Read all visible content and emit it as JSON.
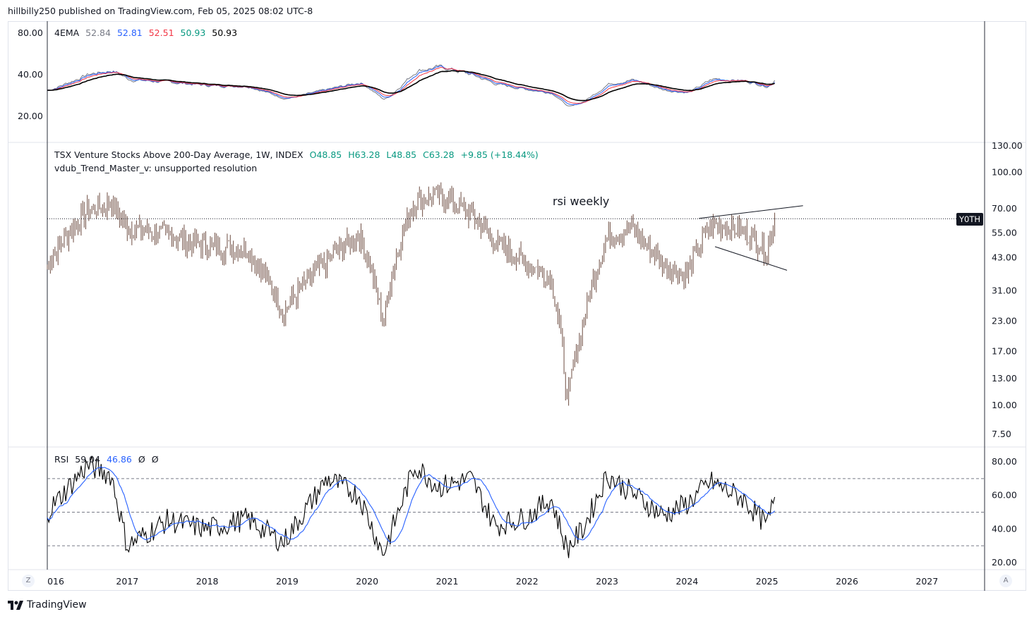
{
  "header": {
    "text": "hillbilly250 published on TradingView.com, Feb 05, 2025 08:02 UTC-8"
  },
  "ema_legend": {
    "name": "4EMA",
    "v1": "52.84",
    "v2": "52.81",
    "v3": "52.51",
    "v4": "50.93",
    "v5": "50.93",
    "colors": [
      "#787b86",
      "#2962ff",
      "#f23645",
      "#089981",
      "#000000"
    ]
  },
  "main_legend": {
    "symbol": "TSX Venture Stocks Above 200-Day Average, 1W, INDEX",
    "o": "O48.85",
    "h": "H63.28",
    "l": "L48.85",
    "c": "C63.28",
    "chg": "+9.85 (+18.44%)",
    "indicator": "vdub_Trend_Master_v: unsupported resolution"
  },
  "price_tag": "Y0TH",
  "annotation": "rsi  weekly",
  "rsi_legend": {
    "name": "RSI",
    "v1": "59.04",
    "v2": "46.86",
    "icon1": "Ø",
    "icon2": "Ø"
  },
  "axes": {
    "ema_ticks": [
      "80.00",
      "40.00",
      "20.00"
    ],
    "price_ticks": [
      "130.00",
      "100.00",
      "70.00",
      "55.00",
      "43.00",
      "31.00",
      "23.00",
      "17.00",
      "13.00",
      "10.00",
      "7.50"
    ],
    "rsi_ticks": [
      "80.00",
      "60.00",
      "40.00",
      "20.00"
    ],
    "time_ticks": [
      "016",
      "2017",
      "2018",
      "2019",
      "2020",
      "2021",
      "2022",
      "2023",
      "2024",
      "2025",
      "2026",
      "2027"
    ]
  },
  "bottom": {
    "z": "Z",
    "a": "A",
    "brand": "TradingView"
  },
  "chart_data": {
    "type": "line",
    "x_years": [
      2016.0,
      2016.5,
      2016.8,
      2017.0,
      2017.5,
      2018.0,
      2018.5,
      2018.95,
      2019.5,
      2019.9,
      2020.2,
      2020.6,
      2020.9,
      2021.3,
      2021.6,
      2022.0,
      2022.3,
      2022.5,
      2022.7,
      2023.0,
      2023.3,
      2023.7,
      2024.0,
      2024.3,
      2024.7,
      2025.0,
      2025.1
    ],
    "price_close": [
      40,
      68,
      74,
      58,
      54,
      48,
      47,
      25,
      42,
      54,
      22,
      75,
      80,
      66,
      50,
      41,
      35,
      10,
      22,
      52,
      58,
      40,
      36,
      60,
      56,
      46,
      63.28
    ],
    "rsi": [
      50,
      78,
      72,
      30,
      45,
      40,
      46,
      32,
      70,
      60,
      25,
      78,
      65,
      70,
      42,
      47,
      58,
      28,
      40,
      72,
      62,
      48,
      55,
      68,
      58,
      42,
      59.04
    ],
    "rsi_levels": [
      70,
      50,
      30
    ],
    "series": [
      {
        "name": "TSX Venture Stocks Above 200-Day Average"
      },
      {
        "name": "RSI"
      }
    ]
  }
}
